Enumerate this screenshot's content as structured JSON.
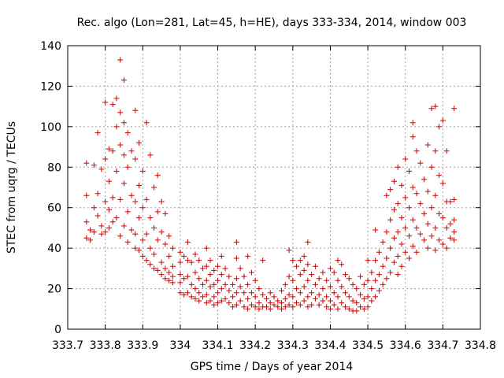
{
  "chart_data": {
    "type": "scatter",
    "title": "Rec. algo (Lon=281, Lat=45, h=HE), days 333-334, 2014, window 003",
    "xlabel": "GPS time / Days of year 2014",
    "ylabel": "STEC from uqrg / TECUs",
    "xlim": [
      333.7,
      334.8
    ],
    "ylim": [
      0,
      140
    ],
    "x_ticks": [
      "333.7",
      "333.8",
      "333.9",
      "334",
      "334.1",
      "334.2",
      "334.3",
      "334.4",
      "334.5",
      "334.6",
      "334.7",
      "334.8"
    ],
    "y_ticks": [
      "0",
      "20",
      "40",
      "60",
      "80",
      "100",
      "120",
      "140"
    ],
    "grid": true,
    "marker": "plus",
    "color": "#cc0000",
    "points": [
      [
        333.75,
        82
      ],
      [
        333.75,
        66
      ],
      [
        333.75,
        53
      ],
      [
        333.75,
        45
      ],
      [
        333.76,
        49
      ],
      [
        333.76,
        44
      ],
      [
        333.77,
        81
      ],
      [
        333.77,
        60
      ],
      [
        333.77,
        48
      ],
      [
        333.78,
        97
      ],
      [
        333.78,
        67
      ],
      [
        333.78,
        56
      ],
      [
        333.79,
        79
      ],
      [
        333.79,
        51
      ],
      [
        333.79,
        47
      ],
      [
        333.8,
        112
      ],
      [
        333.8,
        84
      ],
      [
        333.8,
        63
      ],
      [
        333.8,
        48
      ],
      [
        333.81,
        89
      ],
      [
        333.81,
        73
      ],
      [
        333.81,
        59
      ],
      [
        333.81,
        50
      ],
      [
        333.82,
        111
      ],
      [
        333.82,
        88
      ],
      [
        333.82,
        65
      ],
      [
        333.82,
        53
      ],
      [
        333.83,
        114
      ],
      [
        333.83,
        100
      ],
      [
        333.83,
        78
      ],
      [
        333.83,
        55
      ],
      [
        333.84,
        133
      ],
      [
        333.84,
        107
      ],
      [
        333.84,
        91
      ],
      [
        333.84,
        64
      ],
      [
        333.84,
        46
      ],
      [
        333.85,
        123
      ],
      [
        333.85,
        102
      ],
      [
        333.85,
        86
      ],
      [
        333.85,
        72
      ],
      [
        333.85,
        51
      ],
      [
        333.86,
        97
      ],
      [
        333.86,
        80
      ],
      [
        333.86,
        58
      ],
      [
        333.86,
        43
      ],
      [
        333.87,
        88
      ],
      [
        333.87,
        66
      ],
      [
        333.87,
        49
      ],
      [
        333.88,
        108
      ],
      [
        333.88,
        84
      ],
      [
        333.88,
        63
      ],
      [
        333.88,
        47
      ],
      [
        333.88,
        40
      ],
      [
        333.89,
        92
      ],
      [
        333.89,
        71
      ],
      [
        333.89,
        55
      ],
      [
        333.89,
        39
      ],
      [
        333.9,
        78
      ],
      [
        333.9,
        60
      ],
      [
        333.9,
        44
      ],
      [
        333.9,
        36
      ],
      [
        333.91,
        102
      ],
      [
        333.91,
        64
      ],
      [
        333.91,
        47
      ],
      [
        333.91,
        34
      ],
      [
        333.92,
        86
      ],
      [
        333.92,
        55
      ],
      [
        333.92,
        40
      ],
      [
        333.92,
        32
      ],
      [
        333.93,
        70
      ],
      [
        333.93,
        50
      ],
      [
        333.93,
        37
      ],
      [
        333.93,
        30
      ],
      [
        333.94,
        76
      ],
      [
        333.94,
        58
      ],
      [
        333.94,
        44
      ],
      [
        333.94,
        29
      ],
      [
        333.95,
        63
      ],
      [
        333.95,
        48
      ],
      [
        333.95,
        33
      ],
      [
        333.95,
        27
      ],
      [
        333.96,
        57
      ],
      [
        333.96,
        42
      ],
      [
        333.96,
        30
      ],
      [
        333.96,
        25
      ],
      [
        333.97,
        46
      ],
      [
        333.97,
        36
      ],
      [
        333.97,
        28
      ],
      [
        333.97,
        24
      ],
      [
        333.98,
        40
      ],
      [
        333.98,
        31
      ],
      [
        333.98,
        26
      ],
      [
        333.98,
        23
      ],
      [
        334.0,
        38
      ],
      [
        334.0,
        33
      ],
      [
        334.0,
        27
      ],
      [
        334.0,
        23
      ],
      [
        334.0,
        18
      ],
      [
        334.01,
        36
      ],
      [
        334.01,
        25
      ],
      [
        334.01,
        17
      ],
      [
        334.02,
        43
      ],
      [
        334.02,
        34
      ],
      [
        334.02,
        26
      ],
      [
        334.02,
        18
      ],
      [
        334.03,
        33
      ],
      [
        334.03,
        22
      ],
      [
        334.03,
        16
      ],
      [
        334.04,
        37
      ],
      [
        334.04,
        28
      ],
      [
        334.04,
        20
      ],
      [
        334.04,
        15
      ],
      [
        334.05,
        34
      ],
      [
        334.05,
        25
      ],
      [
        334.05,
        18
      ],
      [
        334.05,
        14
      ],
      [
        334.06,
        30
      ],
      [
        334.06,
        22
      ],
      [
        334.06,
        16
      ],
      [
        334.07,
        40
      ],
      [
        334.07,
        31
      ],
      [
        334.07,
        24
      ],
      [
        334.07,
        17
      ],
      [
        334.07,
        13
      ],
      [
        334.08,
        34
      ],
      [
        334.08,
        27
      ],
      [
        334.08,
        21
      ],
      [
        334.08,
        14
      ],
      [
        334.09,
        29
      ],
      [
        334.09,
        22
      ],
      [
        334.09,
        16
      ],
      [
        334.09,
        12
      ],
      [
        334.1,
        31
      ],
      [
        334.1,
        24
      ],
      [
        334.1,
        18
      ],
      [
        334.1,
        13
      ],
      [
        334.11,
        36
      ],
      [
        334.11,
        27
      ],
      [
        334.11,
        20
      ],
      [
        334.11,
        14
      ],
      [
        334.12,
        30
      ],
      [
        334.12,
        22
      ],
      [
        334.12,
        15
      ],
      [
        334.13,
        26
      ],
      [
        334.13,
        19
      ],
      [
        334.13,
        13
      ],
      [
        334.14,
        22
      ],
      [
        334.14,
        16
      ],
      [
        334.14,
        11
      ],
      [
        334.15,
        43
      ],
      [
        334.15,
        35
      ],
      [
        334.15,
        25
      ],
      [
        334.15,
        18
      ],
      [
        334.15,
        12
      ],
      [
        334.16,
        30
      ],
      [
        334.16,
        21
      ],
      [
        334.16,
        14
      ],
      [
        334.17,
        26
      ],
      [
        334.17,
        18
      ],
      [
        334.17,
        11
      ],
      [
        334.18,
        36
      ],
      [
        334.18,
        22
      ],
      [
        334.18,
        15
      ],
      [
        334.18,
        10
      ],
      [
        334.19,
        28
      ],
      [
        334.19,
        18
      ],
      [
        334.19,
        12
      ],
      [
        334.2,
        24
      ],
      [
        334.2,
        16
      ],
      [
        334.2,
        11
      ],
      [
        334.21,
        20
      ],
      [
        334.21,
        13
      ],
      [
        334.21,
        10
      ],
      [
        334.22,
        34
      ],
      [
        334.22,
        17
      ],
      [
        334.22,
        11
      ],
      [
        334.23,
        15
      ],
      [
        334.23,
        11
      ],
      [
        334.24,
        18
      ],
      [
        334.24,
        13
      ],
      [
        334.24,
        10
      ],
      [
        334.25,
        16
      ],
      [
        334.25,
        12
      ],
      [
        334.26,
        14
      ],
      [
        334.26,
        11
      ],
      [
        334.27,
        19
      ],
      [
        334.27,
        13
      ],
      [
        334.27,
        10
      ],
      [
        334.28,
        22
      ],
      [
        334.28,
        15
      ],
      [
        334.28,
        11
      ],
      [
        334.29,
        39
      ],
      [
        334.29,
        26
      ],
      [
        334.29,
        17
      ],
      [
        334.29,
        12
      ],
      [
        334.3,
        34
      ],
      [
        334.3,
        24
      ],
      [
        334.3,
        16
      ],
      [
        334.3,
        11
      ],
      [
        334.31,
        31
      ],
      [
        334.31,
        20
      ],
      [
        334.31,
        13
      ],
      [
        334.32,
        34
      ],
      [
        334.32,
        27
      ],
      [
        334.32,
        18
      ],
      [
        334.32,
        12
      ],
      [
        334.33,
        36
      ],
      [
        334.33,
        29
      ],
      [
        334.33,
        21
      ],
      [
        334.33,
        14
      ],
      [
        334.34,
        43
      ],
      [
        334.34,
        32
      ],
      [
        334.34,
        24
      ],
      [
        334.34,
        16
      ],
      [
        334.34,
        11
      ],
      [
        334.35,
        27
      ],
      [
        334.35,
        18
      ],
      [
        334.35,
        12
      ],
      [
        334.36,
        31
      ],
      [
        334.36,
        22
      ],
      [
        334.36,
        15
      ],
      [
        334.37,
        25
      ],
      [
        334.37,
        17
      ],
      [
        334.37,
        12
      ],
      [
        334.38,
        28
      ],
      [
        334.38,
        20
      ],
      [
        334.38,
        14
      ],
      [
        334.39,
        24
      ],
      [
        334.39,
        16
      ],
      [
        334.39,
        11
      ],
      [
        334.4,
        30
      ],
      [
        334.4,
        21
      ],
      [
        334.4,
        14
      ],
      [
        334.4,
        10
      ],
      [
        334.41,
        28
      ],
      [
        334.41,
        18
      ],
      [
        334.41,
        12
      ],
      [
        334.42,
        34
      ],
      [
        334.42,
        24
      ],
      [
        334.42,
        16
      ],
      [
        334.42,
        10
      ],
      [
        334.43,
        32
      ],
      [
        334.43,
        21
      ],
      [
        334.43,
        13
      ],
      [
        334.44,
        27
      ],
      [
        334.44,
        18
      ],
      [
        334.44,
        11
      ],
      [
        334.45,
        25
      ],
      [
        334.45,
        16
      ],
      [
        334.45,
        10
      ],
      [
        334.46,
        22
      ],
      [
        334.46,
        14
      ],
      [
        334.46,
        9
      ],
      [
        334.47,
        20
      ],
      [
        334.47,
        13
      ],
      [
        334.47,
        9
      ],
      [
        334.48,
        26
      ],
      [
        334.48,
        17
      ],
      [
        334.48,
        11
      ],
      [
        334.49,
        22
      ],
      [
        334.49,
        15
      ],
      [
        334.49,
        10
      ],
      [
        334.5,
        34
      ],
      [
        334.5,
        24
      ],
      [
        334.5,
        16
      ],
      [
        334.5,
        11
      ],
      [
        334.51,
        28
      ],
      [
        334.51,
        20
      ],
      [
        334.51,
        14
      ],
      [
        334.52,
        49
      ],
      [
        334.52,
        34
      ],
      [
        334.52,
        24
      ],
      [
        334.52,
        16
      ],
      [
        334.53,
        38
      ],
      [
        334.53,
        27
      ],
      [
        334.53,
        19
      ],
      [
        334.54,
        43
      ],
      [
        334.54,
        31
      ],
      [
        334.54,
        22
      ],
      [
        334.55,
        66
      ],
      [
        334.55,
        48
      ],
      [
        334.55,
        35
      ],
      [
        334.55,
        25
      ],
      [
        334.56,
        69
      ],
      [
        334.56,
        54
      ],
      [
        334.56,
        40
      ],
      [
        334.56,
        28
      ],
      [
        334.57,
        73
      ],
      [
        334.57,
        59
      ],
      [
        334.57,
        45
      ],
      [
        334.57,
        33
      ],
      [
        334.58,
        80
      ],
      [
        334.58,
        62
      ],
      [
        334.58,
        48
      ],
      [
        334.58,
        36
      ],
      [
        334.58,
        27
      ],
      [
        334.59,
        71
      ],
      [
        334.59,
        55
      ],
      [
        334.59,
        42
      ],
      [
        334.59,
        31
      ],
      [
        334.6,
        84
      ],
      [
        334.6,
        65
      ],
      [
        334.6,
        50
      ],
      [
        334.6,
        38
      ],
      [
        334.61,
        78
      ],
      [
        334.61,
        60
      ],
      [
        334.61,
        46
      ],
      [
        334.61,
        35
      ],
      [
        334.62,
        95
      ],
      [
        334.62,
        102
      ],
      [
        334.62,
        70
      ],
      [
        334.62,
        54
      ],
      [
        334.62,
        41
      ],
      [
        334.63,
        88
      ],
      [
        334.63,
        67
      ],
      [
        334.63,
        50
      ],
      [
        334.63,
        38
      ],
      [
        334.64,
        82
      ],
      [
        334.64,
        62
      ],
      [
        334.64,
        47
      ],
      [
        334.65,
        74
      ],
      [
        334.65,
        57
      ],
      [
        334.65,
        44
      ],
      [
        334.66,
        91
      ],
      [
        334.66,
        68
      ],
      [
        334.66,
        52
      ],
      [
        334.66,
        40
      ],
      [
        334.67,
        109
      ],
      [
        334.67,
        80
      ],
      [
        334.67,
        60
      ],
      [
        334.67,
        46
      ],
      [
        334.68,
        110
      ],
      [
        334.68,
        88
      ],
      [
        334.68,
        66
      ],
      [
        334.68,
        50
      ],
      [
        334.68,
        39
      ],
      [
        334.69,
        100
      ],
      [
        334.69,
        76
      ],
      [
        334.69,
        57
      ],
      [
        334.69,
        44
      ],
      [
        334.7,
        103
      ],
      [
        334.7,
        72
      ],
      [
        334.7,
        55
      ],
      [
        334.7,
        42
      ],
      [
        334.71,
        88
      ],
      [
        334.71,
        63
      ],
      [
        334.71,
        50
      ],
      [
        334.71,
        40
      ],
      [
        334.72,
        63
      ],
      [
        334.72,
        52
      ],
      [
        334.72,
        45
      ],
      [
        334.73,
        109
      ],
      [
        334.73,
        64
      ],
      [
        334.73,
        54
      ],
      [
        334.73,
        48
      ],
      [
        334.73,
        44
      ]
    ]
  }
}
